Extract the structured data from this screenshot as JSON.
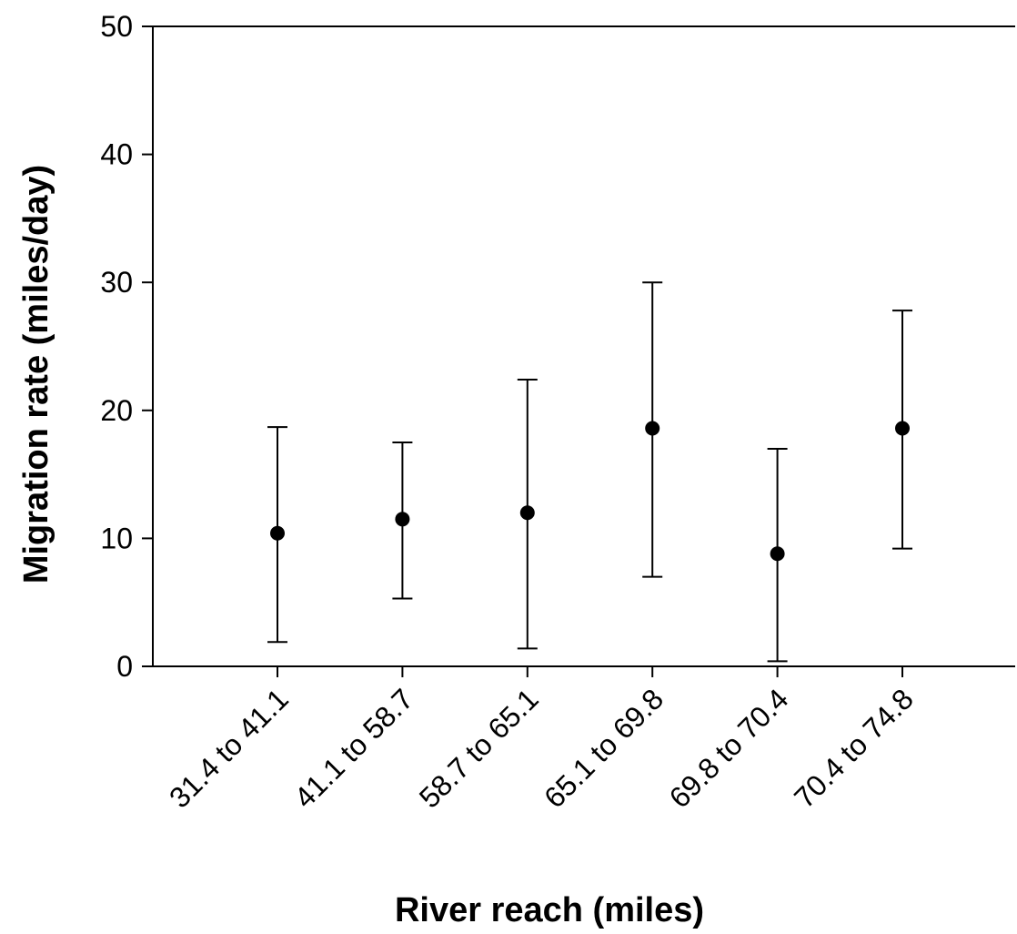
{
  "chart_data": {
    "type": "scatter",
    "title": "",
    "xlabel": "River reach (miles)",
    "ylabel": "Migration rate (miles/day)",
    "categories": [
      "31.4 to 41.1",
      "41.1 to 58.7",
      "58.7 to 65.1",
      "65.1 to 69.8",
      "69.8 to 70.4",
      "70.4 to 74.8"
    ],
    "series": [
      {
        "values": [
          10.4,
          11.5,
          12.0,
          18.6,
          8.8,
          18.6
        ],
        "error_low": [
          1.9,
          5.3,
          1.4,
          7.0,
          0.4,
          9.2
        ],
        "error_high": [
          18.7,
          17.5,
          22.4,
          30.0,
          17.0,
          27.8
        ]
      }
    ],
    "ylim": [
      0,
      50
    ],
    "yticks": [
      0,
      10,
      20,
      30,
      40,
      50
    ],
    "grid": false,
    "legend": "none",
    "colors": {
      "marker": "#000000",
      "error_bar": "#000000",
      "axis": "#000000"
    }
  }
}
